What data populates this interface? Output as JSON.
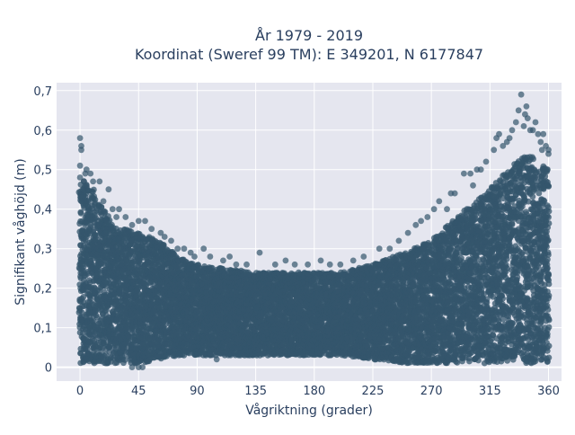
{
  "chart_data": {
    "type": "scatter",
    "title_line1": "År 1979 - 2019",
    "title_line2": "Koordinat (Sweref 99 TM): E 349201, N 6177847",
    "xlabel": "Vågriktning (grader)",
    "ylabel": "Signifikant våghöjd (m)",
    "xlim": [
      -18,
      370
    ],
    "ylim": [
      -0.035,
      0.72
    ],
    "x_ticks": [
      0,
      45,
      90,
      135,
      180,
      225,
      270,
      315,
      360
    ],
    "x_tick_labels": [
      "0",
      "45",
      "90",
      "135",
      "180",
      "225",
      "270",
      "315",
      "360"
    ],
    "y_ticks": [
      0,
      0.1,
      0.2,
      0.3,
      0.4,
      0.5,
      0.6,
      0.7
    ],
    "y_tick_labels": [
      "0",
      "0,1",
      "0,2",
      "0,3",
      "0,4",
      "0,5",
      "0,6",
      "0,7"
    ],
    "grid": true,
    "series": [
      {
        "marker_color": "#34566c",
        "envelope": {
          "x": [
            0,
            10,
            25,
            45,
            60,
            75,
            90,
            110,
            135,
            160,
            180,
            200,
            225,
            250,
            270,
            290,
            315,
            335,
            345,
            360
          ],
          "y_max": [
            0.48,
            0.45,
            0.36,
            0.34,
            0.32,
            0.28,
            0.26,
            0.25,
            0.24,
            0.24,
            0.24,
            0.24,
            0.26,
            0.29,
            0.32,
            0.38,
            0.45,
            0.52,
            0.54,
            0.5
          ],
          "y_min": [
            0.01,
            0.01,
            0.01,
            0.01,
            0.02,
            0.03,
            0.03,
            0.03,
            0.03,
            0.03,
            0.03,
            0.03,
            0.02,
            0.01,
            0.01,
            0.01,
            0.01,
            0.01,
            0.01,
            0.01
          ]
        },
        "outliers": [
          [
            0,
            0.58
          ],
          [
            1,
            0.56
          ],
          [
            1,
            0.55
          ],
          [
            0,
            0.51
          ],
          [
            5,
            0.5
          ],
          [
            8,
            0.49
          ],
          [
            10,
            0.47
          ],
          [
            5,
            0.46
          ],
          [
            15,
            0.47
          ],
          [
            22,
            0.45
          ],
          [
            18,
            0.42
          ],
          [
            25,
            0.4
          ],
          [
            30,
            0.4
          ],
          [
            28,
            0.38
          ],
          [
            35,
            0.38
          ],
          [
            40,
            0.36
          ],
          [
            45,
            0.37
          ],
          [
            50,
            0.37
          ],
          [
            55,
            0.35
          ],
          [
            62,
            0.34
          ],
          [
            65,
            0.33
          ],
          [
            70,
            0.32
          ],
          [
            75,
            0.3
          ],
          [
            80,
            0.3
          ],
          [
            85,
            0.29
          ],
          [
            88,
            0.28
          ],
          [
            95,
            0.3
          ],
          [
            100,
            0.28
          ],
          [
            110,
            0.27
          ],
          [
            115,
            0.28
          ],
          [
            120,
            0.26
          ],
          [
            128,
            0.26
          ],
          [
            138,
            0.29
          ],
          [
            150,
            0.26
          ],
          [
            158,
            0.27
          ],
          [
            165,
            0.26
          ],
          [
            175,
            0.26
          ],
          [
            185,
            0.27
          ],
          [
            192,
            0.26
          ],
          [
            200,
            0.26
          ],
          [
            210,
            0.27
          ],
          [
            218,
            0.28
          ],
          [
            230,
            0.3
          ],
          [
            238,
            0.3
          ],
          [
            245,
            0.32
          ],
          [
            252,
            0.34
          ],
          [
            258,
            0.36
          ],
          [
            262,
            0.37
          ],
          [
            267,
            0.38
          ],
          [
            272,
            0.4
          ],
          [
            276,
            0.42
          ],
          [
            282,
            0.4
          ],
          [
            285,
            0.44
          ],
          [
            288,
            0.44
          ],
          [
            295,
            0.49
          ],
          [
            300,
            0.49
          ],
          [
            302,
            0.46
          ],
          [
            305,
            0.5
          ],
          [
            308,
            0.5
          ],
          [
            312,
            0.52
          ],
          [
            318,
            0.55
          ],
          [
            320,
            0.58
          ],
          [
            322,
            0.59
          ],
          [
            325,
            0.56
          ],
          [
            328,
            0.57
          ],
          [
            330,
            0.58
          ],
          [
            332,
            0.6
          ],
          [
            335,
            0.62
          ],
          [
            337,
            0.65
          ],
          [
            339,
            0.69
          ],
          [
            341,
            0.61
          ],
          [
            342,
            0.64
          ],
          [
            343,
            0.66
          ],
          [
            344,
            0.63
          ],
          [
            346,
            0.6
          ],
          [
            348,
            0.6
          ],
          [
            350,
            0.62
          ],
          [
            352,
            0.59
          ],
          [
            354,
            0.57
          ],
          [
            356,
            0.59
          ],
          [
            358,
            0.56
          ],
          [
            355,
            0.55
          ],
          [
            360,
            0.55
          ],
          [
            360,
            0.54
          ],
          [
            0.5,
            0.43
          ],
          [
            1,
            0.42
          ],
          [
            2,
            0.45
          ],
          [
            0,
            0.48
          ],
          [
            3,
            0.47
          ],
          [
            4,
            0.49
          ],
          [
            40,
            0.0
          ],
          [
            45,
            0.0
          ],
          [
            48,
            0.0
          ],
          [
            20,
            0.01
          ],
          [
            100,
            0.03
          ],
          [
            105,
            0.02
          ]
        ]
      }
    ]
  }
}
